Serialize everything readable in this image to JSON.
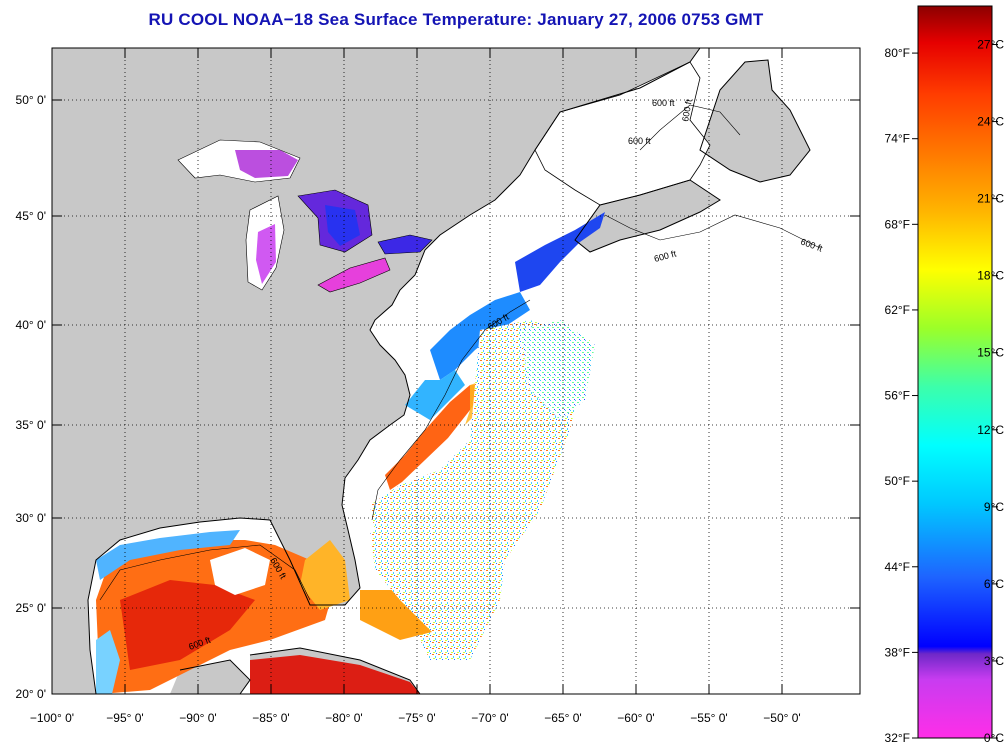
{
  "title": "RU COOL  NOAA−18  Sea Surface Temperature:  January 27, 2006 0753 GMT",
  "map": {
    "lat_labels": [
      "20° 0'",
      "25° 0'",
      "30° 0'",
      "35° 0'",
      "40° 0'",
      "45° 0'",
      "50° 0'"
    ],
    "lon_labels": [
      "−100° 0'",
      "−95° 0'",
      "−90° 0'",
      "−85° 0'",
      "−80° 0'",
      "−75° 0'",
      "−70° 0'",
      "−65° 0'",
      "−60° 0'",
      "−55° 0'",
      "−50° 0'"
    ],
    "isobath_labels": [
      "600 ft",
      "600 ft",
      "600 ft",
      "600 ft",
      "600 ft",
      "600 ft",
      "600 ft",
      "600 ft"
    ],
    "land_color": "#c8c8c8",
    "ocean_nodata_color": "#ffffff"
  },
  "colorbar": {
    "fahrenheit_labels": [
      "32°F",
      "38°F",
      "44°F",
      "50°F",
      "56°F",
      "62°F",
      "68°F",
      "74°F",
      "80°F"
    ],
    "celsius_labels": [
      "0°C",
      "3°C",
      "6°C",
      "9°C",
      "12°C",
      "15°C",
      "18°C",
      "21°C",
      "24°C",
      "27°C"
    ],
    "range_c": [
      0,
      28.5
    ],
    "stops": [
      {
        "at": 0.0,
        "color": "#ff2ee8"
      },
      {
        "at": 0.08,
        "color": "#c83cf0"
      },
      {
        "at": 0.115,
        "color": "#6e28c8"
      },
      {
        "at": 0.125,
        "color": "#0000ff"
      },
      {
        "at": 0.22,
        "color": "#1e64ff"
      },
      {
        "at": 0.32,
        "color": "#00c8ff"
      },
      {
        "at": 0.4,
        "color": "#00ffff"
      },
      {
        "at": 0.48,
        "color": "#3cffaa"
      },
      {
        "at": 0.56,
        "color": "#9cff28"
      },
      {
        "at": 0.64,
        "color": "#ffff00"
      },
      {
        "at": 0.72,
        "color": "#ffb400"
      },
      {
        "at": 0.8,
        "color": "#ff7800"
      },
      {
        "at": 0.88,
        "color": "#ff3c00"
      },
      {
        "at": 0.95,
        "color": "#e60000"
      },
      {
        "at": 1.0,
        "color": "#8c0000"
      }
    ]
  }
}
